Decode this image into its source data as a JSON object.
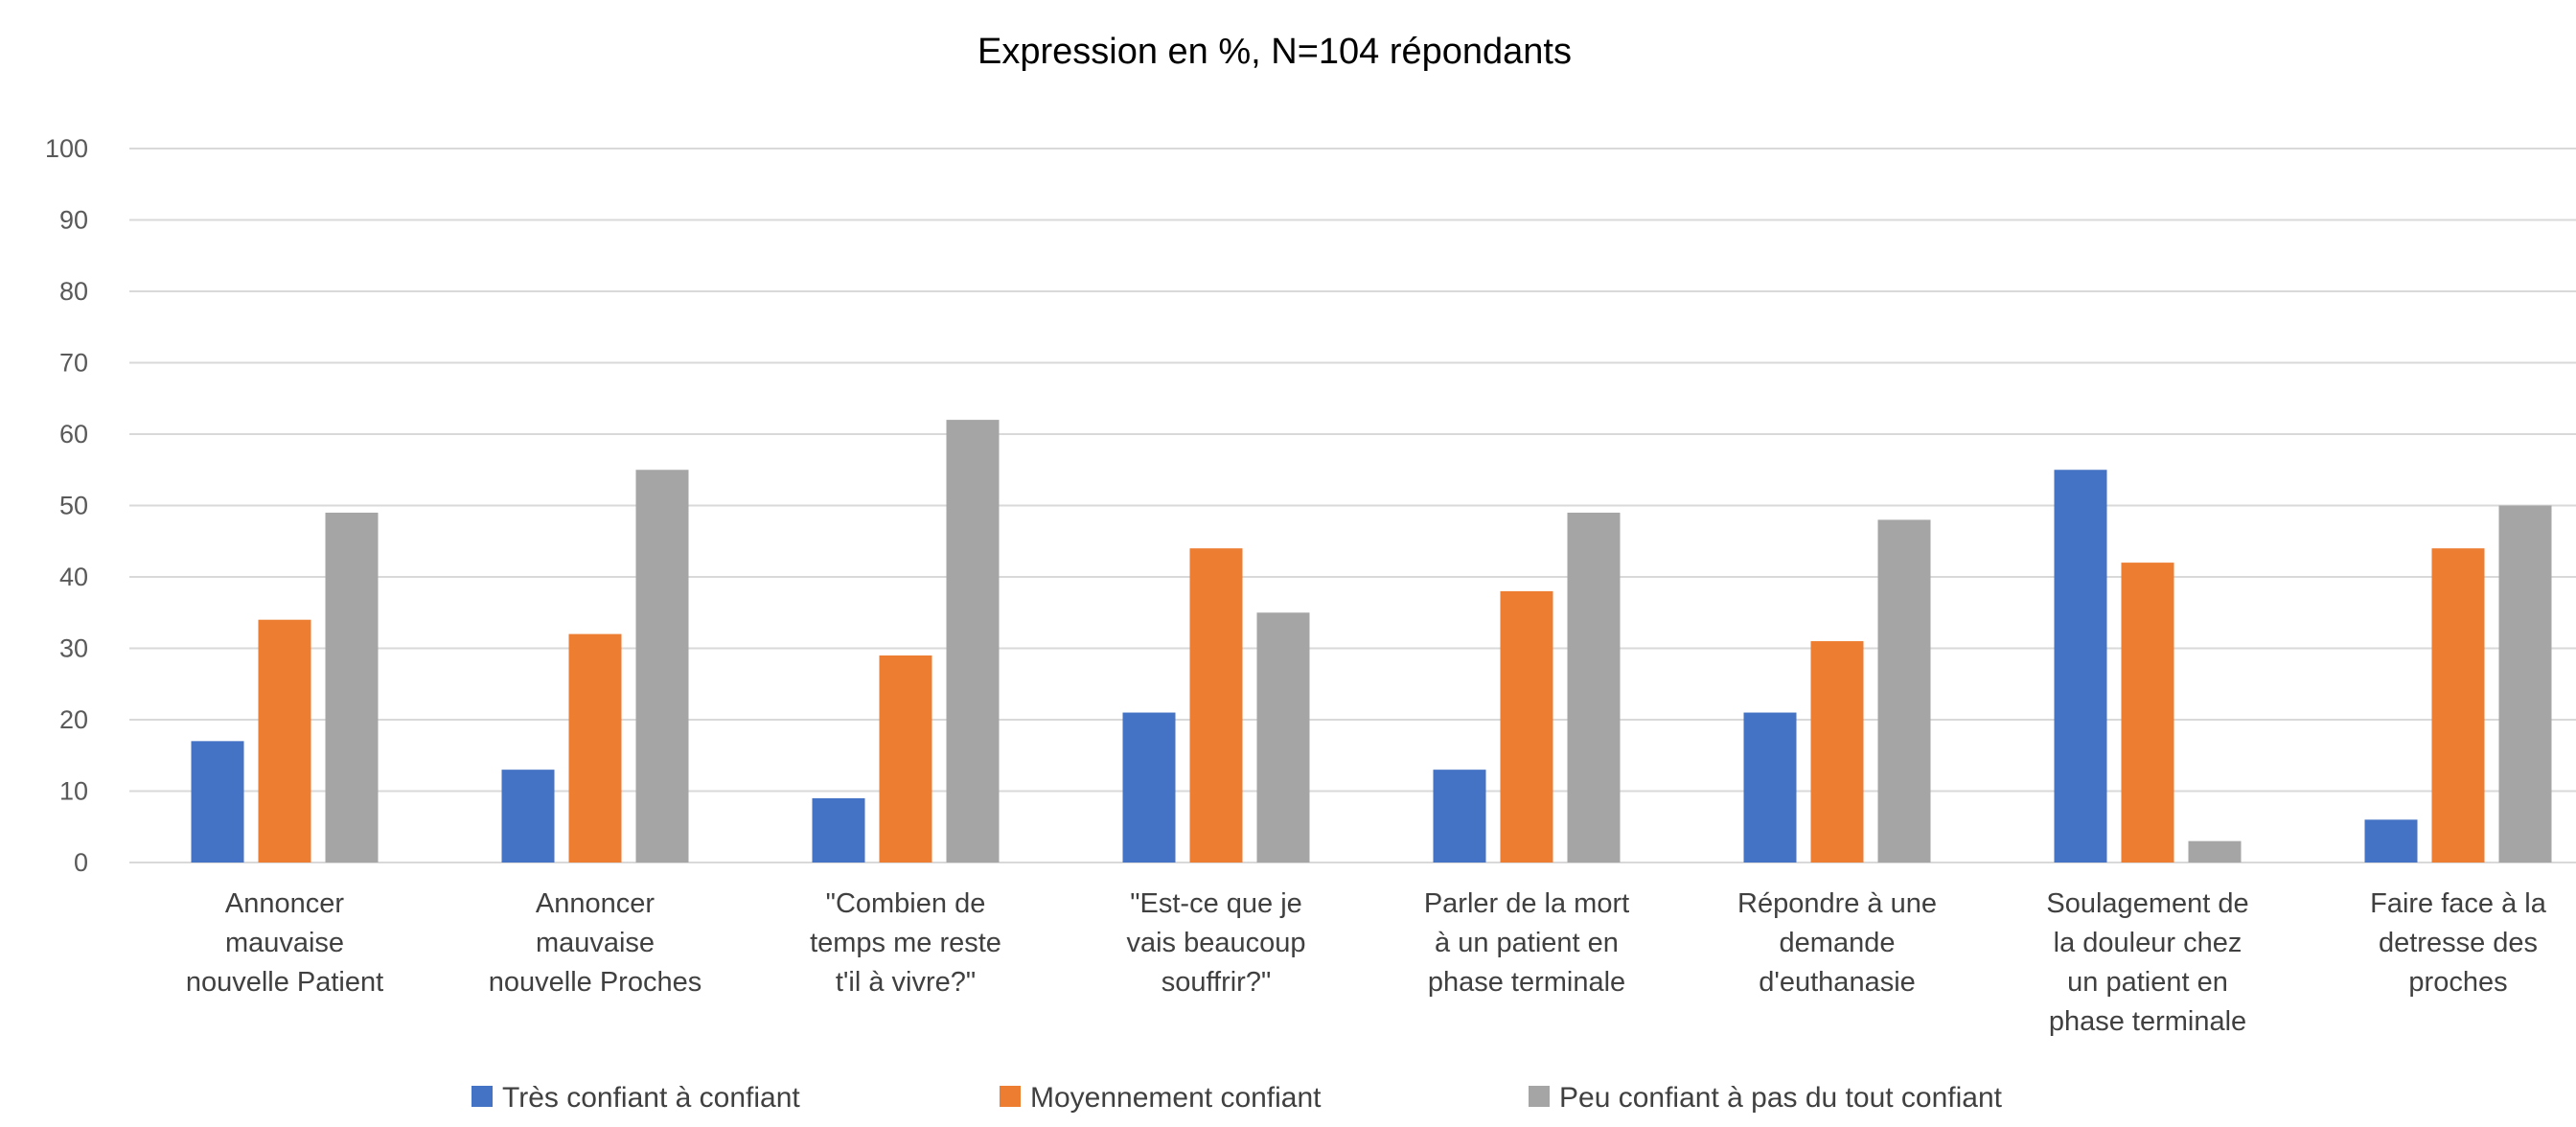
{
  "chart_data": {
    "type": "bar",
    "title": "Expression en %, N=104 répondants",
    "xlabel": "",
    "ylabel": "",
    "ylim": [
      0,
      100
    ],
    "yticks": [
      0,
      10,
      20,
      30,
      40,
      50,
      60,
      70,
      80,
      90,
      100
    ],
    "grid": true,
    "legend_position": "bottom",
    "categories": [
      [
        "Annoncer",
        "mauvaise",
        "nouvelle Patient"
      ],
      [
        "Annoncer",
        "mauvaise",
        "nouvelle Proches"
      ],
      [
        "\"Combien de",
        "temps me reste",
        "t'il à vivre?\""
      ],
      [
        "\"Est-ce que je",
        "vais beaucoup",
        "souffrir?\""
      ],
      [
        "Parler de la mort",
        "à un patient en",
        "phase terminale"
      ],
      [
        "Répondre à une",
        "demande",
        "d'euthanasie"
      ],
      [
        "Soulagement de",
        "la douleur chez",
        "un patient en",
        "phase terminale"
      ],
      [
        "Faire face à la",
        "detresse des",
        "proches"
      ]
    ],
    "series": [
      {
        "name": "Très confiant à confiant",
        "color": "#4472C4",
        "values": [
          17,
          13,
          9,
          21,
          13,
          21,
          55,
          6
        ]
      },
      {
        "name": "Moyennement confiant",
        "color": "#ED7D31",
        "values": [
          34,
          32,
          29,
          44,
          38,
          31,
          42,
          44
        ]
      },
      {
        "name": "Peu confiant à pas du tout confiant",
        "color": "#A5A5A5",
        "values": [
          49,
          55,
          62,
          35,
          49,
          48,
          3,
          50
        ]
      }
    ]
  }
}
